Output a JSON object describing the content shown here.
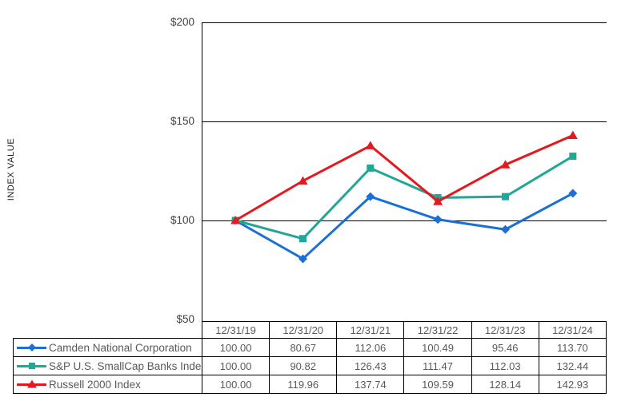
{
  "chart": {
    "y_axis_title": "INDEX VALUE",
    "y_ticks": [
      {
        "label": "$200",
        "value": 200
      },
      {
        "label": "$150",
        "value": 150
      },
      {
        "label": "$100",
        "value": 100
      },
      {
        "label": "$50",
        "value": 50
      }
    ]
  },
  "chart_data": {
    "type": "line",
    "title": "",
    "xlabel": "",
    "ylabel": "INDEX VALUE",
    "ylim": [
      50,
      200
    ],
    "gridline_values": [
      200,
      150,
      100
    ],
    "grid": true,
    "legend_position": "table-left",
    "categories": [
      "12/31/19",
      "12/31/20",
      "12/31/21",
      "12/31/22",
      "12/31/23",
      "12/31/24"
    ],
    "series": [
      {
        "name": "Camden National Corporation",
        "marker": "diamond",
        "color": "#1B6FD5",
        "values": [
          100.0,
          80.67,
          112.06,
          100.49,
          95.46,
          113.7
        ]
      },
      {
        "name": "S&P U.S. SmallCap Banks Index",
        "marker": "square",
        "color": "#22A695",
        "values": [
          100.0,
          90.82,
          126.43,
          111.47,
          112.03,
          132.44
        ]
      },
      {
        "name": "Russell 2000 Index",
        "marker": "triangle",
        "color": "#E4191E",
        "values": [
          100.0,
          119.96,
          137.74,
          109.59,
          128.14,
          142.93
        ]
      }
    ]
  },
  "table": {
    "col_headers": [
      "12/31/19",
      "12/31/20",
      "12/31/21",
      "12/31/22",
      "12/31/23",
      "12/31/24"
    ],
    "rows": [
      {
        "label": "Camden National Corporation",
        "values": [
          "100.00",
          "80.67",
          "112.06",
          "100.49",
          "95.46",
          "113.70"
        ]
      },
      {
        "label": "S&P U.S. SmallCap Banks Index",
        "values": [
          "100.00",
          "90.82",
          "126.43",
          "111.47",
          "112.03",
          "132.44"
        ]
      },
      {
        "label": "Russell 2000 Index",
        "values": [
          "100.00",
          "119.96",
          "137.74",
          "109.59",
          "128.14",
          "142.93"
        ]
      }
    ]
  },
  "colors": {
    "axis": "#000000",
    "tick_text": "#404040",
    "table_text": "#595959"
  }
}
